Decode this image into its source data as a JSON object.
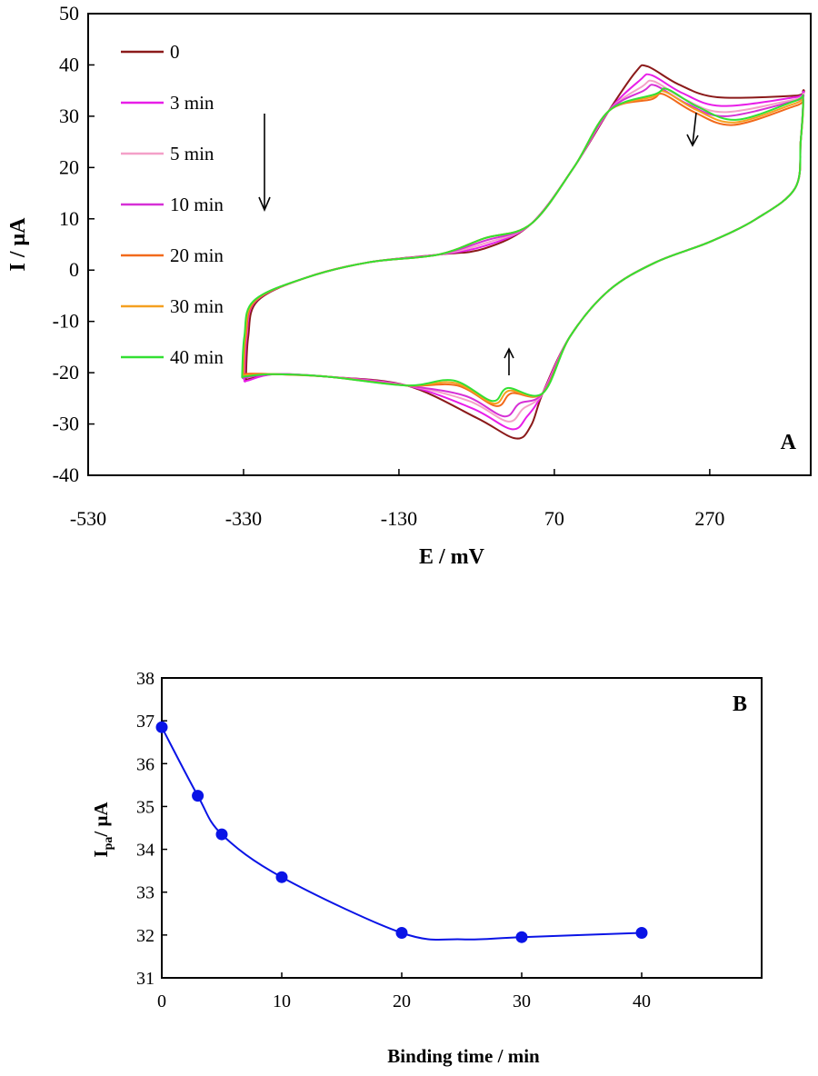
{
  "chart_data": [
    {
      "type": "line",
      "panel_label": "A",
      "xlabel": "E / mV",
      "ylabel": "I / μA",
      "xlim": [
        -530,
        400
      ],
      "ylim": [
        -40,
        50
      ],
      "xticks": [
        -530,
        -330,
        -130,
        70,
        270
      ],
      "yticks": [
        -40,
        -30,
        -20,
        -10,
        0,
        10,
        20,
        30,
        40,
        50
      ],
      "grid": false,
      "legend_position": "top-left",
      "series": [
        {
          "name": "0",
          "color": "#8b1a1a",
          "anodic_peak": [
            190,
            39.7
          ],
          "cathodic_peak": [
            20,
            -32.8
          ],
          "start_anodic": 3.0,
          "start_cathodic": 2.0,
          "corner_low": [
            -327,
            -21.5
          ],
          "turn_high": [
            390,
            34.5
          ]
        },
        {
          "name": "3 min",
          "color": "#e81ee8",
          "anodic_peak": [
            195,
            38.0
          ],
          "cathodic_peak": [
            15,
            -31.0
          ],
          "start_anodic": 3.5,
          "start_cathodic": 2.0,
          "corner_low": [
            -329,
            -21.8
          ],
          "turn_high": [
            390,
            34.2
          ]
        },
        {
          "name": "5 min",
          "color": "#f4a0c8",
          "anodic_peak": [
            198,
            36.8
          ],
          "cathodic_peak": [
            10,
            -29.5
          ],
          "start_anodic": 4.0,
          "start_cathodic": 2.0,
          "corner_low": [
            -330,
            -21.0
          ],
          "turn_high": [
            390,
            33.8
          ]
        },
        {
          "name": "10 min",
          "color": "#d630d6",
          "anodic_peak": [
            200,
            36.0
          ],
          "cathodic_peak": [
            5,
            -28.5
          ],
          "start_anodic": 4.5,
          "start_cathodic": 2.0,
          "corner_low": [
            -331,
            -21.2
          ],
          "turn_high": [
            390,
            33.5
          ]
        },
        {
          "name": "20 min",
          "color": "#f26a1b",
          "anodic_peak": [
            210,
            34.3
          ],
          "cathodic_peak": [
            -5,
            -26.5
          ],
          "start_anodic": 5.0,
          "start_cathodic": 2.5,
          "corner_low": [
            -330,
            -20.5
          ],
          "turn_high": [
            390,
            32.5
          ]
        },
        {
          "name": "30 min",
          "color": "#f5a020",
          "anodic_peak": [
            212,
            34.8
          ],
          "cathodic_peak": [
            -8,
            -26.0
          ],
          "start_anodic": 5.0,
          "start_cathodic": 2.5,
          "corner_low": [
            -331,
            -20.8
          ],
          "turn_high": [
            390,
            33.0
          ]
        },
        {
          "name": "40 min",
          "color": "#33e033",
          "anodic_peak": [
            215,
            35.3
          ],
          "cathodic_peak": [
            -10,
            -25.5
          ],
          "start_anodic": 5.0,
          "start_cathodic": 2.5,
          "corner_low": [
            -332,
            -21.0
          ],
          "turn_high": [
            390,
            33.5
          ]
        }
      ]
    },
    {
      "type": "scatter",
      "panel_label": "B",
      "xlabel": "Binding time / min",
      "ylabel_main": "I",
      "ylabel_sub": "pa",
      "ylabel_rest": "/ μA",
      "xlim": [
        0,
        50
      ],
      "ylim": [
        31,
        38
      ],
      "xticks": [
        0,
        10,
        20,
        30,
        40
      ],
      "yticks": [
        31,
        32,
        33,
        34,
        35,
        36,
        37,
        38
      ],
      "grid": false,
      "color": "#0a14e6",
      "x": [
        0,
        3,
        5,
        10,
        20,
        30,
        40
      ],
      "y": [
        36.85,
        35.25,
        34.35,
        33.35,
        32.05,
        31.95,
        32.05
      ]
    }
  ]
}
